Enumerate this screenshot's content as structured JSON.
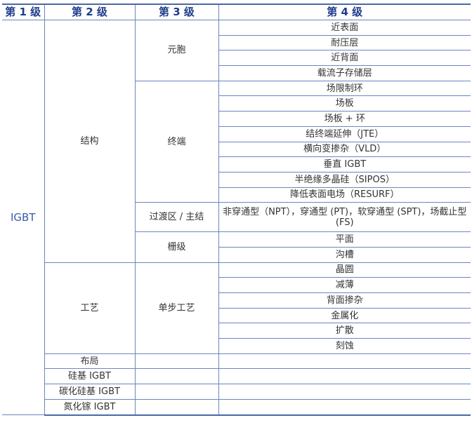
{
  "headers": [
    "第 1 级",
    "第 2 级",
    "第 3 级",
    "第 4 级"
  ],
  "level1": "IGBT",
  "level2": {
    "structure": "结构",
    "process": "工艺",
    "layout": "布局",
    "si": "硅基 IGBT",
    "sic": "碳化硅基 IGBT",
    "gan": "氮化镓 IGBT"
  },
  "level3": {
    "cell": "元胞",
    "termination": "终端",
    "transition": "过渡区 / 主结",
    "gate": "栅级",
    "step": "单步工艺"
  },
  "cell": [
    "近表面",
    "耐压层",
    "近背面",
    "载流子存储层"
  ],
  "termination": [
    "场限制环",
    "场板",
    "场板 + 环",
    "结终端延伸（JTE）",
    "横向变掺杂（VLD）",
    "垂直 IGBT",
    "半绝缘多晶硅（SIPOS）",
    "降低表面电场（RESURF）"
  ],
  "transition": "非穿通型（NPT），穿通型 (PT)，软穿通型 (SPT)，场截止型 (FS)",
  "gate": [
    "平面",
    "沟槽"
  ],
  "step": [
    "晶圆",
    "减薄",
    "背面掺杂",
    "金属化",
    "扩散",
    "刻蚀"
  ]
}
